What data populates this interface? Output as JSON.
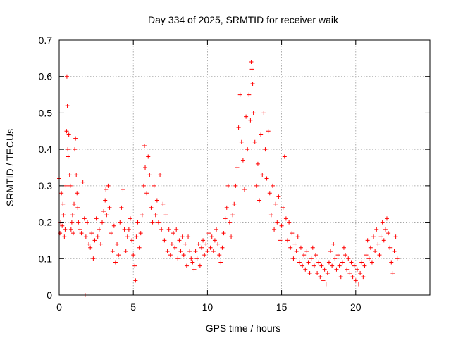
{
  "chart_data": {
    "type": "scatter",
    "title": "Day 334 of 2025, SRMTID for receiver waik",
    "xlabel": "GPS time / hours",
    "ylabel": "SRMTID / TECUs",
    "xlim": [
      0,
      25
    ],
    "ylim": [
      0,
      0.7
    ],
    "x_ticks": [
      0,
      5,
      10,
      15,
      20
    ],
    "x_tick_labels": [
      "0",
      "5",
      "10",
      "15",
      "20"
    ],
    "y_ticks": [
      0,
      0.1,
      0.2,
      0.3,
      0.4,
      0.5,
      0.6,
      0.7
    ],
    "y_tick_labels": [
      "0",
      "0.1",
      "0.2",
      "0.3",
      "0.4",
      "0.5",
      "0.6",
      "0.7"
    ],
    "grid": true,
    "marker": "plus",
    "series": [
      {
        "name": "SRMTID",
        "color": "#ff0000",
        "points": [
          [
            0.0,
            0.32
          ],
          [
            0.05,
            0.17
          ],
          [
            0.1,
            0.2
          ],
          [
            0.15,
            0.28
          ],
          [
            0.2,
            0.19
          ],
          [
            0.25,
            0.25
          ],
          [
            0.3,
            0.22
          ],
          [
            0.35,
            0.16
          ],
          [
            0.4,
            0.18
          ],
          [
            0.45,
            0.3
          ],
          [
            0.5,
            0.45
          ],
          [
            0.52,
            0.6
          ],
          [
            0.55,
            0.52
          ],
          [
            0.58,
            0.4
          ],
          [
            0.6,
            0.38
          ],
          [
            0.65,
            0.44
          ],
          [
            0.7,
            0.33
          ],
          [
            0.75,
            0.3
          ],
          [
            0.8,
            0.18
          ],
          [
            0.85,
            0.2
          ],
          [
            0.9,
            0.22
          ],
          [
            0.95,
            0.17
          ],
          [
            1.0,
            0.25
          ],
          [
            1.05,
            0.4
          ],
          [
            1.1,
            0.43
          ],
          [
            1.15,
            0.33
          ],
          [
            1.2,
            0.28
          ],
          [
            1.25,
            0.24
          ],
          [
            1.3,
            0.2
          ],
          [
            1.4,
            0.18
          ],
          [
            1.5,
            0.17
          ],
          [
            1.6,
            0.31
          ],
          [
            1.7,
            0.21
          ],
          [
            1.75,
            0.0
          ],
          [
            1.8,
            0.16
          ],
          [
            1.9,
            0.2
          ],
          [
            2.0,
            0.14
          ],
          [
            2.1,
            0.13
          ],
          [
            2.2,
            0.17
          ],
          [
            2.3,
            0.1
          ],
          [
            2.4,
            0.15
          ],
          [
            2.5,
            0.21
          ],
          [
            2.6,
            0.16
          ],
          [
            2.7,
            0.18
          ],
          [
            2.8,
            0.14
          ],
          [
            2.9,
            0.2
          ],
          [
            3.0,
            0.23
          ],
          [
            3.1,
            0.26
          ],
          [
            3.15,
            0.29
          ],
          [
            3.2,
            0.22
          ],
          [
            3.3,
            0.3
          ],
          [
            3.4,
            0.24
          ],
          [
            3.5,
            0.17
          ],
          [
            3.6,
            0.12
          ],
          [
            3.7,
            0.19
          ],
          [
            3.8,
            0.09
          ],
          [
            3.9,
            0.14
          ],
          [
            4.0,
            0.11
          ],
          [
            4.1,
            0.2
          ],
          [
            4.2,
            0.24
          ],
          [
            4.3,
            0.29
          ],
          [
            4.4,
            0.18
          ],
          [
            4.5,
            0.12
          ],
          [
            4.6,
            0.16
          ],
          [
            4.7,
            0.18
          ],
          [
            4.8,
            0.21
          ],
          [
            4.9,
            0.15
          ],
          [
            5.0,
            0.11
          ],
          [
            5.1,
            0.08
          ],
          [
            5.15,
            0.04
          ],
          [
            5.2,
            0.16
          ],
          [
            5.3,
            0.2
          ],
          [
            5.4,
            0.13
          ],
          [
            5.5,
            0.17
          ],
          [
            5.6,
            0.22
          ],
          [
            5.7,
            0.3
          ],
          [
            5.75,
            0.41
          ],
          [
            5.8,
            0.35
          ],
          [
            5.9,
            0.28
          ],
          [
            6.0,
            0.38
          ],
          [
            6.1,
            0.33
          ],
          [
            6.2,
            0.24
          ],
          [
            6.3,
            0.2
          ],
          [
            6.4,
            0.3
          ],
          [
            6.5,
            0.22
          ],
          [
            6.6,
            0.26
          ],
          [
            6.7,
            0.2
          ],
          [
            6.8,
            0.33
          ],
          [
            6.9,
            0.18
          ],
          [
            7.0,
            0.25
          ],
          [
            7.1,
            0.15
          ],
          [
            7.2,
            0.22
          ],
          [
            7.3,
            0.12
          ],
          [
            7.4,
            0.18
          ],
          [
            7.5,
            0.11
          ],
          [
            7.6,
            0.14
          ],
          [
            7.7,
            0.17
          ],
          [
            7.8,
            0.13
          ],
          [
            7.9,
            0.18
          ],
          [
            8.0,
            0.1
          ],
          [
            8.1,
            0.15
          ],
          [
            8.2,
            0.12
          ],
          [
            8.3,
            0.16
          ],
          [
            8.4,
            0.11
          ],
          [
            8.5,
            0.14
          ],
          [
            8.6,
            0.08
          ],
          [
            8.7,
            0.16
          ],
          [
            8.8,
            0.12
          ],
          [
            8.9,
            0.1
          ],
          [
            9.0,
            0.09
          ],
          [
            9.1,
            0.07
          ],
          [
            9.2,
            0.12
          ],
          [
            9.3,
            0.1
          ],
          [
            9.4,
            0.14
          ],
          [
            9.5,
            0.08
          ],
          [
            9.6,
            0.13
          ],
          [
            9.7,
            0.15
          ],
          [
            9.8,
            0.11
          ],
          [
            9.9,
            0.14
          ],
          [
            10.0,
            0.12
          ],
          [
            10.1,
            0.17
          ],
          [
            10.2,
            0.13
          ],
          [
            10.3,
            0.16
          ],
          [
            10.4,
            0.12
          ],
          [
            10.5,
            0.15
          ],
          [
            10.6,
            0.18
          ],
          [
            10.7,
            0.14
          ],
          [
            10.8,
            0.11
          ],
          [
            10.9,
            0.09
          ],
          [
            11.0,
            0.13
          ],
          [
            11.1,
            0.17
          ],
          [
            11.2,
            0.21
          ],
          [
            11.3,
            0.24
          ],
          [
            11.4,
            0.3
          ],
          [
            11.5,
            0.2
          ],
          [
            11.6,
            0.16
          ],
          [
            11.7,
            0.22
          ],
          [
            11.8,
            0.25
          ],
          [
            11.9,
            0.3
          ],
          [
            12.0,
            0.35
          ],
          [
            12.1,
            0.46
          ],
          [
            12.2,
            0.55
          ],
          [
            12.3,
            0.42
          ],
          [
            12.4,
            0.37
          ],
          [
            12.5,
            0.29
          ],
          [
            12.6,
            0.49
          ],
          [
            12.7,
            0.4
          ],
          [
            12.8,
            0.55
          ],
          [
            12.9,
            0.48
          ],
          [
            12.95,
            0.64
          ],
          [
            13.0,
            0.62
          ],
          [
            13.05,
            0.58
          ],
          [
            13.1,
            0.5
          ],
          [
            13.2,
            0.42
          ],
          [
            13.3,
            0.3
          ],
          [
            13.4,
            0.36
          ],
          [
            13.5,
            0.26
          ],
          [
            13.6,
            0.44
          ],
          [
            13.7,
            0.33
          ],
          [
            13.8,
            0.5
          ],
          [
            13.9,
            0.4
          ],
          [
            14.0,
            0.32
          ],
          [
            14.1,
            0.45
          ],
          [
            14.2,
            0.28
          ],
          [
            14.3,
            0.22
          ],
          [
            14.4,
            0.3
          ],
          [
            14.5,
            0.18
          ],
          [
            14.6,
            0.25
          ],
          [
            14.7,
            0.2
          ],
          [
            14.8,
            0.27
          ],
          [
            14.9,
            0.15
          ],
          [
            15.0,
            0.19
          ],
          [
            15.1,
            0.24
          ],
          [
            15.2,
            0.38
          ],
          [
            15.3,
            0.21
          ],
          [
            15.4,
            0.15
          ],
          [
            15.5,
            0.2
          ],
          [
            15.6,
            0.13
          ],
          [
            15.7,
            0.17
          ],
          [
            15.8,
            0.1
          ],
          [
            15.9,
            0.14
          ],
          [
            16.0,
            0.12
          ],
          [
            16.1,
            0.16
          ],
          [
            16.2,
            0.09
          ],
          [
            16.3,
            0.13
          ],
          [
            16.4,
            0.08
          ],
          [
            16.5,
            0.11
          ],
          [
            16.6,
            0.07
          ],
          [
            16.7,
            0.12
          ],
          [
            16.8,
            0.09
          ],
          [
            16.9,
            0.06
          ],
          [
            17.0,
            0.1
          ],
          [
            17.1,
            0.13
          ],
          [
            17.2,
            0.08
          ],
          [
            17.3,
            0.11
          ],
          [
            17.4,
            0.06
          ],
          [
            17.5,
            0.09
          ],
          [
            17.6,
            0.05
          ],
          [
            17.7,
            0.08
          ],
          [
            17.8,
            0.04
          ],
          [
            17.9,
            0.07
          ],
          [
            18.0,
            0.03
          ],
          [
            18.1,
            0.06
          ],
          [
            18.2,
            0.09
          ],
          [
            18.3,
            0.12
          ],
          [
            18.4,
            0.08
          ],
          [
            18.5,
            0.14
          ],
          [
            18.6,
            0.1
          ],
          [
            18.7,
            0.07
          ],
          [
            18.8,
            0.11
          ],
          [
            18.9,
            0.08
          ],
          [
            19.0,
            0.05
          ],
          [
            19.1,
            0.09
          ],
          [
            19.2,
            0.13
          ],
          [
            19.3,
            0.11
          ],
          [
            19.4,
            0.07
          ],
          [
            19.5,
            0.1
          ],
          [
            19.6,
            0.06
          ],
          [
            19.7,
            0.09
          ],
          [
            19.8,
            0.05
          ],
          [
            19.9,
            0.08
          ],
          [
            20.0,
            0.04
          ],
          [
            20.1,
            0.07
          ],
          [
            20.2,
            0.03
          ],
          [
            20.3,
            0.06
          ],
          [
            20.4,
            0.09
          ],
          [
            20.5,
            0.05
          ],
          [
            20.6,
            0.08
          ],
          [
            20.7,
            0.11
          ],
          [
            20.8,
            0.15
          ],
          [
            20.9,
            0.1
          ],
          [
            21.0,
            0.13
          ],
          [
            21.1,
            0.09
          ],
          [
            21.2,
            0.16
          ],
          [
            21.3,
            0.12
          ],
          [
            21.4,
            0.18
          ],
          [
            21.5,
            0.14
          ],
          [
            21.6,
            0.11
          ],
          [
            21.7,
            0.16
          ],
          [
            21.8,
            0.2
          ],
          [
            21.9,
            0.15
          ],
          [
            22.0,
            0.18
          ],
          [
            22.1,
            0.21
          ],
          [
            22.2,
            0.17
          ],
          [
            22.3,
            0.13
          ],
          [
            22.4,
            0.09
          ],
          [
            22.5,
            0.06
          ],
          [
            22.6,
            0.12
          ],
          [
            22.7,
            0.16
          ],
          [
            22.8,
            0.1
          ]
        ]
      }
    ]
  }
}
